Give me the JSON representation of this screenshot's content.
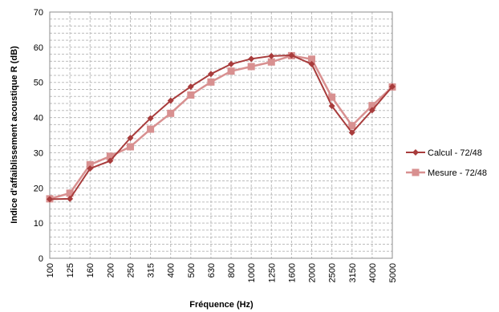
{
  "chart_data": {
    "type": "line",
    "title": "",
    "xlabel": "Fréquence (Hz)",
    "ylabel": "Indice d'affaiblissement acoustique R (dB)",
    "categories": [
      "100",
      "125",
      "160",
      "200",
      "250",
      "315",
      "400",
      "500",
      "630",
      "800",
      "1000",
      "1250",
      "1600",
      "2000",
      "2500",
      "3150",
      "4000",
      "5000"
    ],
    "ylim": [
      0,
      70
    ],
    "yticks": [
      "0",
      "10",
      "20",
      "30",
      "40",
      "50",
      "60",
      "70"
    ],
    "grid": "dashed horizontal and vertical",
    "legend_position": "right",
    "series": [
      {
        "name": "Calcul - 72/48",
        "color": "#a83c3c",
        "marker": "diamond",
        "values": [
          16.8,
          16.9,
          25.5,
          27.7,
          34.2,
          39.8,
          44.8,
          48.8,
          52.4,
          55.2,
          56.7,
          57.5,
          57.7,
          55.2,
          43.3,
          35.7,
          42.1,
          48.8
        ]
      },
      {
        "name": "Mesure - 72/48",
        "color": "#d89090",
        "marker": "square",
        "values": [
          16.9,
          18.5,
          26.6,
          29.0,
          31.7,
          36.7,
          41.2,
          46.4,
          50.1,
          53.2,
          54.5,
          55.8,
          57.6,
          56.6,
          45.8,
          37.7,
          43.4,
          48.7
        ]
      }
    ]
  }
}
